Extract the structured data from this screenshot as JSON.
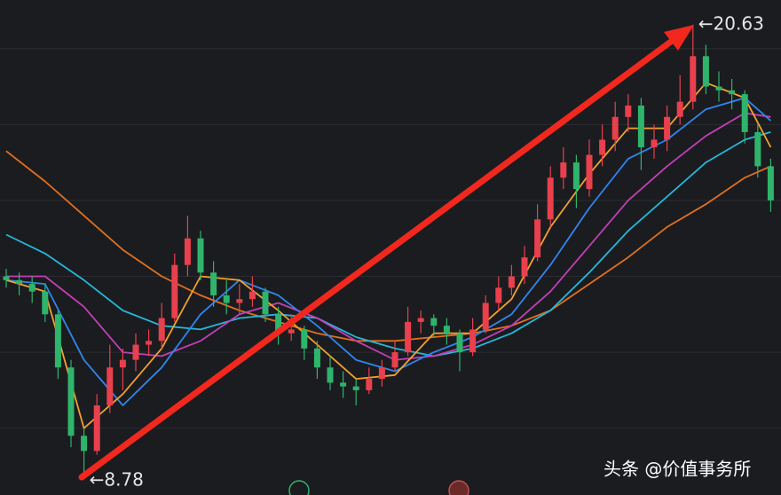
{
  "chart_data": {
    "type": "candlestick",
    "ylim": [
      8.24,
      21.28
    ],
    "grid_values": [
      10,
      12,
      14,
      16,
      18,
      20
    ],
    "up_color": "#e8404d",
    "down_color": "#2fb46c",
    "candles": [
      [
        14.0,
        14.2,
        13.7,
        13.9
      ],
      [
        13.9,
        14.1,
        13.5,
        13.8
      ],
      [
        13.8,
        14.0,
        13.3,
        13.6
      ],
      [
        13.6,
        13.8,
        12.8,
        13.0
      ],
      [
        13.0,
        13.1,
        11.3,
        11.6
      ],
      [
        11.6,
        11.8,
        9.5,
        9.8
      ],
      [
        9.8,
        10.0,
        8.78,
        9.4
      ],
      [
        9.4,
        10.9,
        9.3,
        10.6
      ],
      [
        10.6,
        12.2,
        10.4,
        11.6
      ],
      [
        11.6,
        12.1,
        11.0,
        11.8
      ],
      [
        11.8,
        12.5,
        11.5,
        12.2
      ],
      [
        12.2,
        12.6,
        11.9,
        12.3
      ],
      [
        12.3,
        13.3,
        12.1,
        12.9
      ],
      [
        12.9,
        14.6,
        12.8,
        14.3
      ],
      [
        14.3,
        15.6,
        14.0,
        15.0
      ],
      [
        15.0,
        15.2,
        13.9,
        14.1
      ],
      [
        14.1,
        14.4,
        13.2,
        13.5
      ],
      [
        13.5,
        13.9,
        13.0,
        13.3
      ],
      [
        13.3,
        13.8,
        13.0,
        13.4
      ],
      [
        13.4,
        14.0,
        13.2,
        13.6
      ],
      [
        13.6,
        13.7,
        12.8,
        13.0
      ],
      [
        13.0,
        13.2,
        12.2,
        12.5
      ],
      [
        12.5,
        13.0,
        12.3,
        12.6
      ],
      [
        12.6,
        12.7,
        11.8,
        12.1
      ],
      [
        12.1,
        12.3,
        11.3,
        11.6
      ],
      [
        11.6,
        11.9,
        11.0,
        11.2
      ],
      [
        11.2,
        11.5,
        10.8,
        11.1
      ],
      [
        11.1,
        11.3,
        10.6,
        11.0
      ],
      [
        11.0,
        11.6,
        10.9,
        11.3
      ],
      [
        11.3,
        11.8,
        11.1,
        11.6
      ],
      [
        11.6,
        12.3,
        11.5,
        12.0
      ],
      [
        12.0,
        13.2,
        11.9,
        12.8
      ],
      [
        12.8,
        13.1,
        12.5,
        12.9
      ],
      [
        12.9,
        13.0,
        12.4,
        12.7
      ],
      [
        12.7,
        12.9,
        12.2,
        12.5
      ],
      [
        12.5,
        12.6,
        11.5,
        12.0
      ],
      [
        12.0,
        12.9,
        11.9,
        12.6
      ],
      [
        12.6,
        13.5,
        12.5,
        13.3
      ],
      [
        13.3,
        14.0,
        13.1,
        13.7
      ],
      [
        13.7,
        14.3,
        13.5,
        14.0
      ],
      [
        14.0,
        14.8,
        13.8,
        14.5
      ],
      [
        14.5,
        15.9,
        14.4,
        15.5
      ],
      [
        15.5,
        16.9,
        15.3,
        16.6
      ],
      [
        16.6,
        17.4,
        16.3,
        17.0
      ],
      [
        17.0,
        17.2,
        15.8,
        16.3
      ],
      [
        16.3,
        17.6,
        16.1,
        17.2
      ],
      [
        17.2,
        18.0,
        16.9,
        17.6
      ],
      [
        17.6,
        18.6,
        17.3,
        18.2
      ],
      [
        18.2,
        18.8,
        17.8,
        18.5
      ],
      [
        18.5,
        18.7,
        16.8,
        17.4
      ],
      [
        17.4,
        18.0,
        17.1,
        17.6
      ],
      [
        17.6,
        18.5,
        17.3,
        18.2
      ],
      [
        18.2,
        19.3,
        18.0,
        18.6
      ],
      [
        18.6,
        20.63,
        18.4,
        19.8
      ],
      [
        19.8,
        20.1,
        18.8,
        19.0
      ],
      [
        19.0,
        19.4,
        18.6,
        18.9
      ],
      [
        18.9,
        19.2,
        18.4,
        18.8
      ],
      [
        18.8,
        18.9,
        17.5,
        17.8
      ],
      [
        17.8,
        18.0,
        16.6,
        16.9
      ],
      [
        16.9,
        17.1,
        15.7,
        16.0
      ]
    ],
    "ma_x": [
      0,
      3,
      6,
      9,
      12,
      15,
      18,
      21,
      24,
      27,
      30,
      33,
      36,
      39,
      42,
      45,
      48,
      51,
      54,
      57,
      59
    ],
    "series": [
      {
        "color": "#e0701f",
        "values": [
          17.3,
          16.5,
          15.6,
          14.7,
          14.0,
          13.5,
          13.1,
          12.8,
          12.5,
          12.3,
          12.3,
          12.4,
          12.5,
          12.7,
          13.1,
          13.8,
          14.5,
          15.3,
          15.9,
          16.6,
          16.9
        ]
      },
      {
        "color": "#26b7d9",
        "values": [
          15.1,
          14.6,
          13.9,
          13.1,
          12.7,
          12.6,
          12.9,
          13.0,
          12.9,
          12.4,
          12.1,
          11.9,
          12.1,
          12.5,
          13.1,
          14.1,
          15.2,
          16.1,
          17.0,
          17.6,
          17.8
        ]
      },
      {
        "color": "#c23fb6",
        "values": [
          14.0,
          14.0,
          13.2,
          12.0,
          11.9,
          12.3,
          13.0,
          13.3,
          12.9,
          12.3,
          11.8,
          11.9,
          12.2,
          12.7,
          13.6,
          14.8,
          16.0,
          16.9,
          17.7,
          18.3,
          18.2
        ]
      },
      {
        "color": "#2f86ee",
        "values": [
          13.9,
          13.8,
          11.8,
          10.6,
          11.6,
          13.0,
          13.9,
          13.5,
          12.7,
          11.8,
          11.5,
          12.0,
          12.4,
          13.0,
          14.3,
          15.8,
          17.1,
          17.6,
          18.4,
          18.7,
          18.1
        ]
      },
      {
        "color": "#f3a12b",
        "values": [
          13.9,
          13.6,
          10.0,
          10.9,
          12.1,
          14.0,
          13.9,
          13.1,
          12.2,
          11.3,
          11.4,
          12.5,
          12.5,
          13.4,
          15.3,
          16.7,
          17.9,
          17.9,
          19.1,
          18.7,
          17.4
        ]
      }
    ],
    "annotations": [
      {
        "text": "←20.63",
        "value": 20.63,
        "candle": 53
      },
      {
        "text": "←8.78",
        "value": 8.78,
        "candle": 6
      }
    ]
  },
  "watermark": "头条 @价值事务所"
}
